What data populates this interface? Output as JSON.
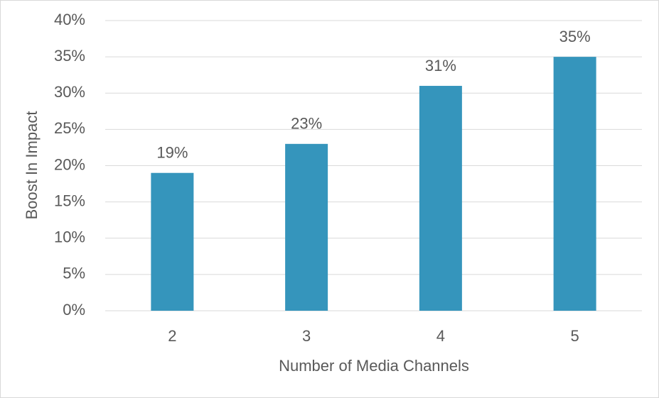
{
  "chart_data": {
    "type": "bar",
    "x_label": "Number of Media Channels",
    "y_label": "Boost In Impact",
    "categories": [
      "2",
      "3",
      "4",
      "5"
    ],
    "values": [
      19,
      23,
      31,
      35
    ],
    "value_labels": [
      "19%",
      "23%",
      "31%",
      "35%"
    ],
    "color": "#3595bc",
    "ylim": [
      0,
      40
    ],
    "yticks": [
      {
        "value": 0,
        "label": "0%"
      },
      {
        "value": 5,
        "label": "5%"
      },
      {
        "value": 10,
        "label": "10%"
      },
      {
        "value": 15,
        "label": "15%"
      },
      {
        "value": 20,
        "label": "20%"
      },
      {
        "value": 25,
        "label": "25%"
      },
      {
        "value": 30,
        "label": "30%"
      },
      {
        "value": 35,
        "label": "35%"
      },
      {
        "value": 40,
        "label": "40%"
      }
    ],
    "grid": true
  }
}
